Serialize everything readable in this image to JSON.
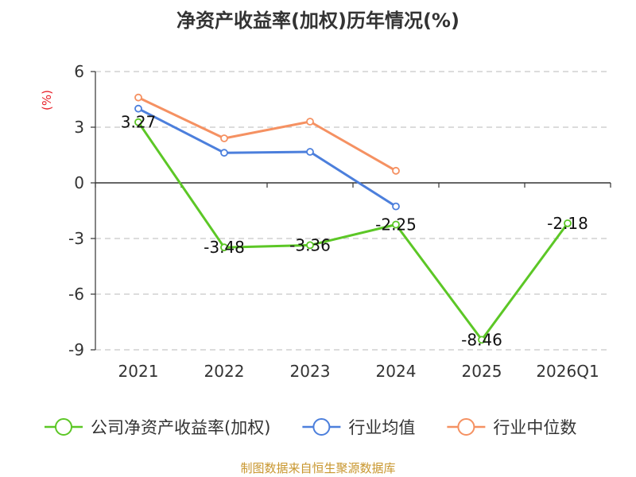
{
  "chart_data": {
    "type": "line",
    "title": "净资产收益率(加权)历年情况(%)",
    "ylabel": "(%)",
    "categories": [
      "2021",
      "2022",
      "2023",
      "2024",
      "2025",
      "2026Q1"
    ],
    "ylim": [
      -9,
      6
    ],
    "yticks": [
      "6",
      "3",
      "0",
      "-3",
      "-6",
      "-9"
    ],
    "grid": true,
    "legend_position": "bottom",
    "series": [
      {
        "name": "公司净资产收益率(加权)",
        "color": "#5cc726",
        "values": [
          3.27,
          -3.48,
          -3.36,
          -2.25,
          -8.46,
          -2.18
        ],
        "labels": [
          "3.27",
          "-3.48",
          "-3.36",
          "-2.25",
          "-8.46",
          "-2.18"
        ]
      },
      {
        "name": "行业均值",
        "color": "#4c7fdc",
        "values": [
          4.0,
          1.62,
          1.67,
          -1.27,
          null,
          null
        ]
      },
      {
        "name": "行业中位数",
        "color": "#f59162",
        "values": [
          4.6,
          2.4,
          3.3,
          0.65,
          null,
          null
        ]
      }
    ],
    "source": "制图数据来自恒生聚源数据库"
  }
}
